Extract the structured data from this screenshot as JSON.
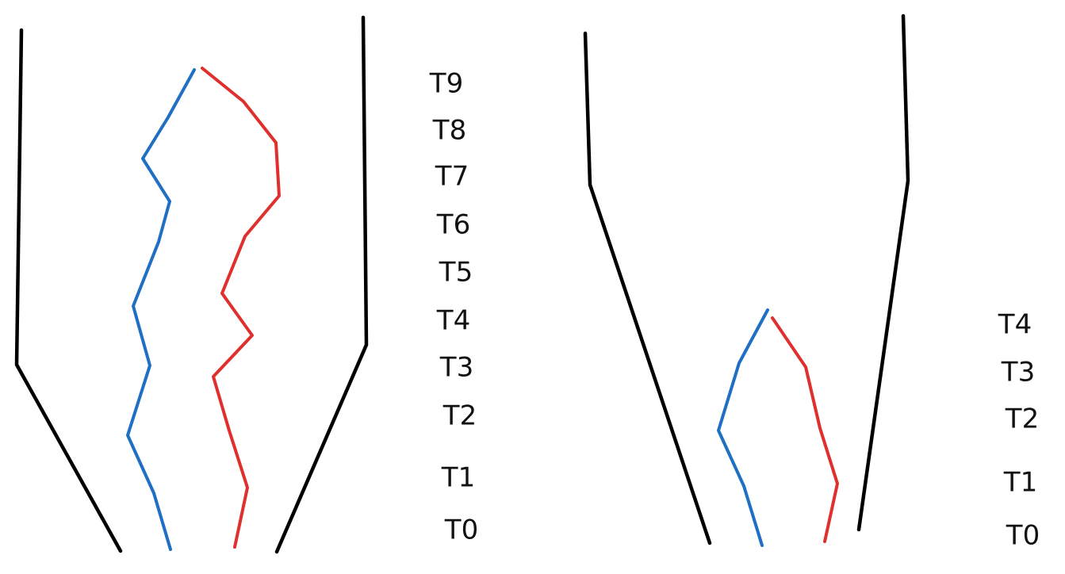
{
  "colors": {
    "wall": "#000000",
    "blue_path": "#1f6fc4",
    "red_path": "#e0302e",
    "label": "#111111"
  },
  "panels": [
    {
      "name": "left",
      "labels": [
        "T9",
        "T8",
        "T7",
        "T6",
        "T5",
        "T4",
        "T3",
        "T2",
        "T1",
        "T0"
      ]
    },
    {
      "name": "right",
      "labels": [
        "T4",
        "T3",
        "T2",
        "T1",
        "T0"
      ]
    }
  ]
}
